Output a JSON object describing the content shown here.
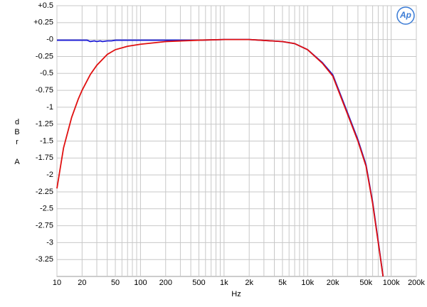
{
  "chart_data": {
    "type": "line",
    "x_label": "Hz",
    "y_label": "dBr A",
    "logo": "Ap",
    "xscale": "log",
    "grid": true,
    "xlim": [
      10,
      200000
    ],
    "ylim": [
      -3.5,
      0.5
    ],
    "xticks": [
      10,
      20,
      {
        "value": 30,
        "label": null
      },
      {
        "value": 40,
        "label": null
      },
      50,
      {
        "value": 60,
        "label": null
      },
      {
        "value": 70,
        "label": null
      },
      {
        "value": 80,
        "label": null
      },
      {
        "value": 90,
        "label": null
      },
      100,
      200,
      {
        "value": 300,
        "label": null
      },
      {
        "value": 400,
        "label": null
      },
      500,
      {
        "value": 600,
        "label": null
      },
      {
        "value": 700,
        "label": null
      },
      {
        "value": 800,
        "label": null
      },
      {
        "value": 900,
        "label": null
      },
      {
        "value": 1000,
        "label": "1k"
      },
      {
        "value": 2000,
        "label": "2k"
      },
      {
        "value": 3000,
        "label": null
      },
      {
        "value": 4000,
        "label": null
      },
      {
        "value": 5000,
        "label": "5k"
      },
      {
        "value": 6000,
        "label": null
      },
      {
        "value": 7000,
        "label": null
      },
      {
        "value": 8000,
        "label": null
      },
      {
        "value": 9000,
        "label": null
      },
      {
        "value": 10000,
        "label": "10k"
      },
      {
        "value": 20000,
        "label": "20k"
      },
      {
        "value": 30000,
        "label": null
      },
      {
        "value": 40000,
        "label": null
      },
      {
        "value": 50000,
        "label": "50k"
      },
      {
        "value": 60000,
        "label": null
      },
      {
        "value": 70000,
        "label": null
      },
      {
        "value": 80000,
        "label": null
      },
      {
        "value": 90000,
        "label": null
      },
      {
        "value": 100000,
        "label": "100k"
      },
      {
        "value": 200000,
        "label": "200k"
      }
    ],
    "yticks": [
      {
        "value": 0.5,
        "label": "+0.5"
      },
      {
        "value": 0.25,
        "label": "+0.25"
      },
      {
        "value": 0,
        "label": "-0"
      },
      -0.25,
      -0.5,
      -0.75,
      -1,
      -1.25,
      -1.5,
      -1.75,
      -2,
      -2.25,
      -2.5,
      -2.75,
      -3,
      -3.25
    ],
    "series": [
      {
        "color": "#1c1cd6",
        "x": [
          10,
          15,
          20,
          23,
          25,
          28,
          30,
          33,
          35,
          40,
          45,
          50,
          70,
          100,
          200,
          500,
          1000,
          2000,
          5000,
          7000,
          10000,
          15000,
          20000,
          30000,
          40000,
          50000,
          60000,
          70000,
          80000
        ],
        "values": [
          -0.01,
          -0.01,
          -0.01,
          -0.01,
          -0.03,
          -0.02,
          -0.03,
          -0.02,
          -0.03,
          -0.02,
          -0.02,
          -0.01,
          -0.01,
          -0.01,
          -0.01,
          -0.01,
          0,
          0,
          -0.03,
          -0.06,
          -0.15,
          -0.34,
          -0.52,
          -1.08,
          -1.48,
          -1.85,
          -2.4,
          -2.98,
          -3.5
        ]
      },
      {
        "color": "#e01010",
        "x": [
          10,
          12,
          15,
          18,
          20,
          25,
          30,
          40,
          50,
          70,
          100,
          200,
          500,
          1000,
          2000,
          5000,
          7000,
          10000,
          15000,
          20000,
          30000,
          40000,
          50000,
          60000,
          70000,
          80000
        ],
        "values": [
          -2.2,
          -1.6,
          -1.15,
          -0.88,
          -0.75,
          -0.52,
          -0.38,
          -0.22,
          -0.15,
          -0.1,
          -0.07,
          -0.03,
          -0.01,
          0,
          0,
          -0.03,
          -0.06,
          -0.15,
          -0.35,
          -0.54,
          -1.1,
          -1.5,
          -1.87,
          -2.42,
          -3.0,
          -3.5
        ]
      }
    ]
  }
}
